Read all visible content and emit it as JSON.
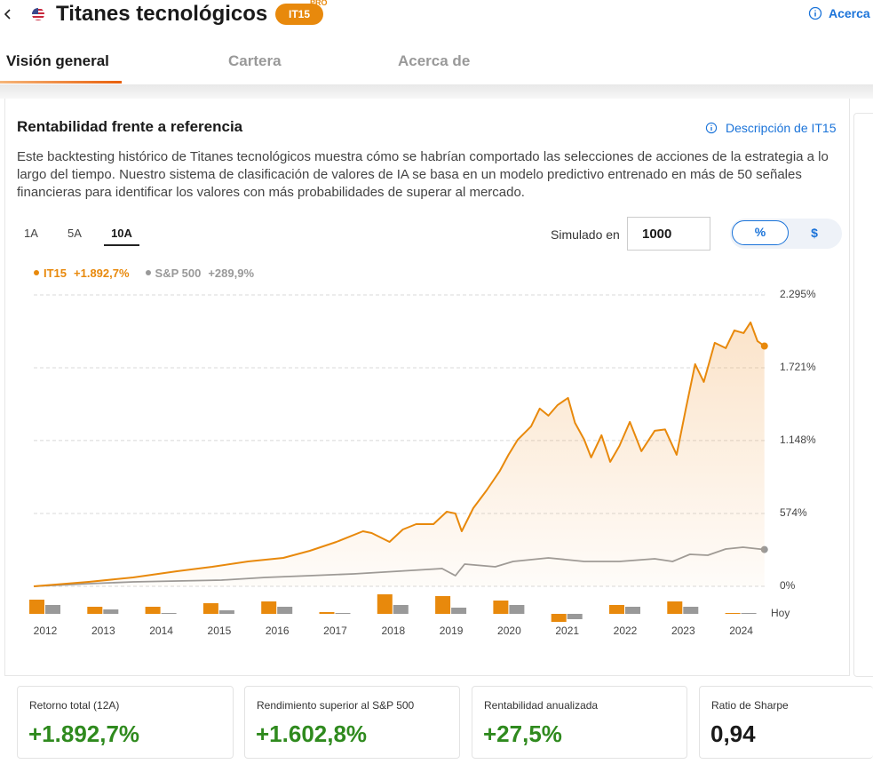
{
  "header": {
    "title": "Titanes tecnológicos",
    "badge": "IT15",
    "badge_sup": "PRO",
    "link": "Acerca"
  },
  "tabs": [
    "Visión general",
    "Cartera",
    "Acerca de"
  ],
  "card": {
    "title": "Rentabilidad frente a referencia",
    "link": "Descripción de IT15",
    "description": "Este backtesting histórico de Titanes tecnológicos muestra cómo se habrían comportado las selecciones de acciones de la estrategia a lo largo del tiempo. Nuestro sistema de clasificación de valores de IA se basa en un modelo predictivo entrenado en más de 50 señales financieras para identificar los valores con más probabilidades de superar al mercado.",
    "ranges": [
      "1A",
      "5A",
      "10A"
    ],
    "simulated_label": "Simulado en",
    "simulated_value": "1000",
    "toggle": [
      "%",
      "$"
    ]
  },
  "chart_data": [
    {
      "type": "line",
      "xlim": [
        2012,
        2024.7
      ],
      "ylim": [
        0,
        2295
      ],
      "yticks": [
        {
          "value": 2295,
          "label": "2.295%"
        },
        {
          "value": 1721,
          "label": "1.721%"
        },
        {
          "value": 1148,
          "label": "1.148%"
        },
        {
          "value": 574,
          "label": "574%"
        },
        {
          "value": 0,
          "label": "0%"
        }
      ],
      "grid": true,
      "series": [
        {
          "name": "IT15",
          "legend_label": "+1.892,7%",
          "color": "#e8890c",
          "x": [
            2012,
            2012.95,
            2013.72,
            2014.48,
            2015.09,
            2015.71,
            2016.32,
            2016.78,
            2017.24,
            2017.7,
            2017.85,
            2018.16,
            2018.39,
            2018.62,
            2018.92,
            2019.15,
            2019.3,
            2019.41,
            2019.61,
            2019.84,
            2020.07,
            2020.22,
            2020.38,
            2020.61,
            2020.76,
            2020.91,
            2021.07,
            2021.25,
            2021.37,
            2021.53,
            2021.65,
            2021.83,
            2021.98,
            2022.14,
            2022.32,
            2022.52,
            2022.75,
            2022.93,
            2023.13,
            2023.29,
            2023.45,
            2023.6,
            2023.79,
            2023.98,
            2024.13,
            2024.29,
            2024.41,
            2024.53,
            2024.65
          ],
          "values": [
            0,
            35,
            70,
            119,
            154,
            196,
            224,
            280,
            350,
            434,
            420,
            350,
            448,
            490,
            490,
            588,
            574,
            434,
            616,
            756,
            910,
            1036,
            1155,
            1260,
            1400,
            1344,
            1428,
            1484,
            1288,
            1155,
            1015,
            1190,
            980,
            1106,
            1295,
            1064,
            1225,
            1236,
            1036,
            1400,
            1750,
            1610,
            1918,
            1876,
            2016,
            1995,
            2079,
            1932,
            1892.7
          ]
        },
        {
          "name": "S&P 500",
          "legend_label": "+289,9%",
          "color": "#999999",
          "x": [
            2012,
            2012.95,
            2013.72,
            2014.48,
            2015.25,
            2016.01,
            2016.78,
            2017.54,
            2018.31,
            2019.07,
            2019.3,
            2019.46,
            2019.99,
            2020.3,
            2020.91,
            2021.53,
            2022.14,
            2022.75,
            2023.06,
            2023.36,
            2023.67,
            2023.98,
            2024.28,
            2024.65
          ],
          "values": [
            0,
            21,
            35,
            42,
            49,
            70,
            84,
            98,
            119,
            140,
            84,
            175,
            154,
            196,
            224,
            196,
            196,
            217,
            196,
            252,
            245,
            294,
            308,
            289.9
          ]
        }
      ]
    },
    {
      "type": "bar",
      "categories": [
        "2012",
        "2013",
        "2014",
        "2015",
        "2016",
        "2017",
        "2018",
        "2019",
        "2020",
        "2021",
        "2022",
        "2023",
        "2024"
      ],
      "ylim": [
        -20,
        50
      ],
      "annotation": "Hoy",
      "series": [
        {
          "color": "#e8890c",
          "values": [
            32,
            16,
            16,
            24,
            28,
            4,
            44,
            40,
            30,
            -18,
            20,
            28,
            2
          ]
        },
        {
          "color": "#999999",
          "values": [
            20,
            10,
            2,
            8,
            16,
            2,
            20,
            14,
            20,
            -12,
            16,
            16,
            2
          ]
        }
      ]
    }
  ],
  "stats": [
    {
      "label": "Retorno total (12A)",
      "value": "+1.892,7%",
      "color": "#2f8a1e"
    },
    {
      "label": "Rendimiento superior al S&P 500",
      "value": "+1.602,8%",
      "color": "#2f8a1e"
    },
    {
      "label": "Rentabilidad anualizada",
      "value": "+27,5%",
      "color": "#2f8a1e"
    },
    {
      "label": "Ratio de Sharpe",
      "value": "0,94",
      "color": "#1a1a1a"
    }
  ]
}
